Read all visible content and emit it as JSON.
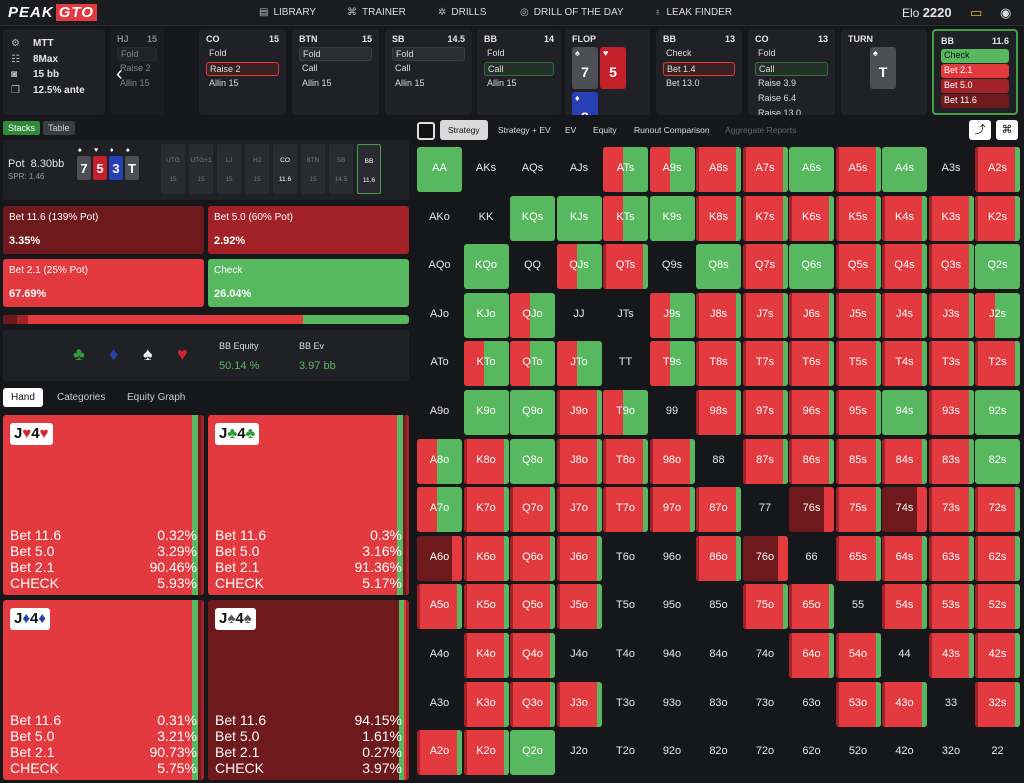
{
  "nav": {
    "logo_a": "PEAK",
    "logo_b": "GTO",
    "library": "LIBRARY",
    "trainer": "TRAINER",
    "drills": "DRILLS",
    "dotd": "DRILL OF THE DAY",
    "leak": "LEAK FINDER",
    "elo_label": "Elo",
    "elo_value": "2220"
  },
  "info": {
    "game": "MTT",
    "max": "8Max",
    "stack": "15 bb",
    "ante": "12.5% ante"
  },
  "positions": [
    {
      "name": "HJ",
      "stack": "15",
      "opts": [
        "Fold",
        "Raise 2",
        "Allin 15"
      ]
    },
    {
      "name": "CO",
      "stack": "15",
      "opts": [
        "Fold",
        "Raise 2",
        "Allin 15"
      ]
    },
    {
      "name": "BTN",
      "stack": "15",
      "opts": [
        "Fold",
        "Call",
        "Allin 15"
      ]
    },
    {
      "name": "SB",
      "stack": "14.5",
      "opts": [
        "Fold",
        "Call",
        "Allin 15"
      ]
    },
    {
      "name": "BB",
      "stack": "14",
      "opts": [
        "Fold",
        "Call",
        "Allin 15"
      ]
    },
    {
      "name": "FLOP",
      "stack": ""
    },
    {
      "name": "BB",
      "stack": "13",
      "opts": [
        "Check",
        "Bet 1.4",
        "Bet 13.0"
      ]
    },
    {
      "name": "CO",
      "stack": "13",
      "opts": [
        "Fold",
        "Call",
        "Raise 3.9",
        "Raise 6.4",
        "Raise 13.0"
      ]
    },
    {
      "name": "TURN",
      "stack": ""
    },
    {
      "name": "BB",
      "stack": "11.6",
      "opts": [
        "Check",
        "Bet 2.1",
        "Bet 5.0",
        "Bet 11.6"
      ]
    }
  ],
  "flop": [
    {
      "rank": "7",
      "suit": "♠"
    },
    {
      "rank": "5",
      "suit": "♥"
    },
    {
      "rank": "3",
      "suit": "♦"
    }
  ],
  "turn": {
    "rank": "T",
    "suit": "♠"
  },
  "left_tabs": {
    "stacks": "Stacks",
    "table": "Table"
  },
  "pot": {
    "label": "Pot",
    "value": "8.30bb",
    "spr": "SPR: 1.46"
  },
  "board": [
    {
      "rank": "7",
      "suit": "♠"
    },
    {
      "rank": "5",
      "suit": "♥"
    },
    {
      "rank": "3",
      "suit": "♦"
    },
    {
      "rank": "T",
      "suit": "♠"
    }
  ],
  "seats": [
    {
      "n": "UTG",
      "s": "15"
    },
    {
      "n": "UTG+1",
      "s": "15"
    },
    {
      "n": "LJ",
      "s": "15"
    },
    {
      "n": "HJ",
      "s": "15"
    },
    {
      "n": "CO",
      "s": "11.6"
    },
    {
      "n": "BTN",
      "s": "15"
    },
    {
      "n": "SB",
      "s": "14.5"
    },
    {
      "n": "BB",
      "s": "11.6"
    }
  ],
  "actions": [
    {
      "label": "Bet 11.6 (139% Pot)",
      "pct": "3.35%",
      "frac": 0.0335
    },
    {
      "label": "Bet 5.0 (60% Pot)",
      "pct": "2.92%",
      "frac": 0.0292
    },
    {
      "label": "Bet 2.1 (25% Pot)",
      "pct": "67.69%",
      "frac": 0.6769
    },
    {
      "label": "Check",
      "pct": "26.04%",
      "frac": 0.2604
    }
  ],
  "equity": {
    "suits": [
      "♣",
      "♦",
      "♠",
      "♥"
    ],
    "eq_label": "BB Equity",
    "eq_value": "50.14 %",
    "ev_label": "BB Ev",
    "ev_value": "3.97 bb"
  },
  "hand_tabs": {
    "hand": "Hand",
    "categories": "Categories",
    "graph": "Equity Graph"
  },
  "hands": [
    {
      "r1": "J",
      "s1": "♥",
      "r2": "4",
      "s2": "♥",
      "freqs": [
        {
          "a": "Bet 11.6",
          "p": "0.32%"
        },
        {
          "a": "Bet 5.0",
          "p": "3.29%"
        },
        {
          "a": "Bet 2.1",
          "p": "90.46%"
        },
        {
          "a": "CHECK",
          "p": "5.93%"
        }
      ]
    },
    {
      "r1": "J",
      "s1": "♣",
      "r2": "4",
      "s2": "♣",
      "freqs": [
        {
          "a": "Bet 11.6",
          "p": "0.3%"
        },
        {
          "a": "Bet 5.0",
          "p": "3.16%"
        },
        {
          "a": "Bet 2.1",
          "p": "91.36%"
        },
        {
          "a": "CHECK",
          "p": "5.17%"
        }
      ]
    },
    {
      "r1": "J",
      "s1": "♦",
      "r2": "4",
      "s2": "♦",
      "freqs": [
        {
          "a": "Bet 11.6",
          "p": "0.31%"
        },
        {
          "a": "Bet 5.0",
          "p": "3.21%"
        },
        {
          "a": "Bet 2.1",
          "p": "90.73%"
        },
        {
          "a": "CHECK",
          "p": "5.75%"
        }
      ]
    },
    {
      "r1": "J",
      "s1": "♠",
      "r2": "4",
      "s2": "♠",
      "freqs": [
        {
          "a": "Bet 11.6",
          "p": "94.15%"
        },
        {
          "a": "Bet 5.0",
          "p": "1.61%"
        },
        {
          "a": "Bet 2.1",
          "p": "0.27%"
        },
        {
          "a": "CHECK",
          "p": "3.97%"
        }
      ]
    }
  ],
  "right_tabs": {
    "strategy": "Strategy",
    "strategy_ev": "Strategy + EV",
    "ev": "EV",
    "equity": "Equity",
    "runout": "Runout Comparison",
    "aggregate": "Aggregate Reports"
  },
  "ranks": [
    "A",
    "K",
    "Q",
    "J",
    "T",
    "9",
    "8",
    "7",
    "6",
    "5",
    "4",
    "3",
    "2"
  ],
  "grid_codes": [
    "G B B B M M R R G R G B R",
    "B B G G M G R R R R R R R",
    "B G B M R B G R G R R R G",
    "B G M B B M R R R R R R M",
    "B M M M B M R R R R R R R",
    "B G G R M B R R R R G R G",
    "M R G R R R B R R R R R G",
    "M R R R R R R B D R D R R",
    "D R R R B B R D B R R R R",
    "R R R R B B B R R B R R R",
    "B R R B B B B B R R B R R",
    "B R R R B B B B B R R B R",
    "R R G B B B B B B B B B B"
  ]
}
